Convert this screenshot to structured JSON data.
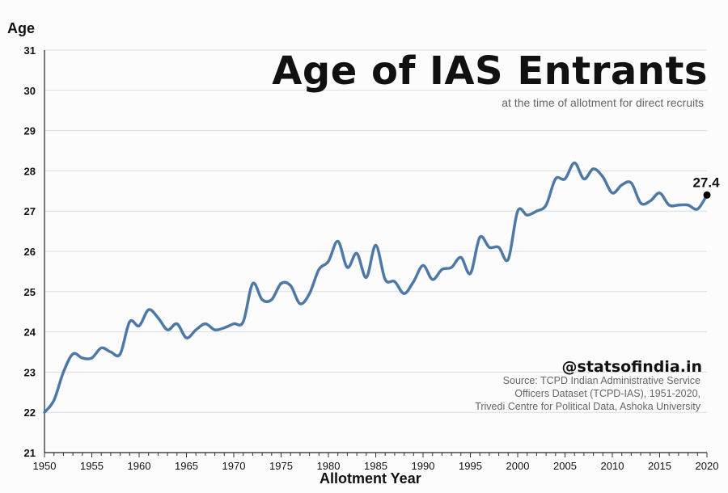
{
  "chart_data": {
    "type": "line",
    "title": "Age of IAS Entrants",
    "subtitle": "at the time of allotment for direct recruits",
    "xlabel": "Allotment Year",
    "ylabel": "Age",
    "xlim": [
      1950,
      2020
    ],
    "ylim": [
      21,
      31
    ],
    "yticks": [
      21,
      22,
      23,
      24,
      25,
      26,
      27,
      28,
      29,
      30,
      31
    ],
    "xticks": [
      1950,
      1955,
      1960,
      1965,
      1970,
      1975,
      1980,
      1985,
      1990,
      1995,
      2000,
      2005,
      2010,
      2015,
      2020
    ],
    "series": [
      {
        "name": "Average age",
        "color": "#4e79a7",
        "x": [
          1950,
          1951,
          1952,
          1953,
          1954,
          1955,
          1956,
          1957,
          1958,
          1959,
          1960,
          1961,
          1962,
          1963,
          1964,
          1965,
          1966,
          1967,
          1968,
          1969,
          1970,
          1971,
          1972,
          1973,
          1974,
          1975,
          1976,
          1977,
          1978,
          1979,
          1980,
          1981,
          1982,
          1983,
          1984,
          1985,
          1986,
          1987,
          1988,
          1989,
          1990,
          1991,
          1992,
          1993,
          1994,
          1995,
          1996,
          1997,
          1998,
          1999,
          2000,
          2001,
          2002,
          2003,
          2004,
          2005,
          2006,
          2007,
          2008,
          2009,
          2010,
          2011,
          2012,
          2013,
          2014,
          2015,
          2016,
          2017,
          2018,
          2019,
          2020
        ],
        "y": [
          22.0,
          22.3,
          23.0,
          23.45,
          23.35,
          23.35,
          23.6,
          23.5,
          23.45,
          24.25,
          24.15,
          24.55,
          24.35,
          24.05,
          24.2,
          23.85,
          24.05,
          24.2,
          24.05,
          24.1,
          24.2,
          24.25,
          25.2,
          24.8,
          24.8,
          25.2,
          25.15,
          24.7,
          24.95,
          25.55,
          25.75,
          26.25,
          25.6,
          25.95,
          25.35,
          26.15,
          25.3,
          25.25,
          24.95,
          25.25,
          25.65,
          25.3,
          25.55,
          25.6,
          25.85,
          25.45,
          26.35,
          26.1,
          26.1,
          25.8,
          27.0,
          26.9,
          27.0,
          27.15,
          27.8,
          27.8,
          28.2,
          27.8,
          28.05,
          27.85,
          27.45,
          27.65,
          27.7,
          27.2,
          27.25,
          27.45,
          27.15,
          27.15,
          27.15,
          27.05,
          27.4
        ]
      }
    ],
    "annotation": {
      "x": 2020,
      "y": 27.4,
      "label": "27.4"
    }
  },
  "branding": {
    "handle": "@statsofindia.in",
    "source_lines": [
      "Source: TCPD Indian Administrative Service",
      "Officers Dataset (TCPD-IAS), 1951-2020,",
      "Trivedi Centre for Political Data, Ashoka University"
    ]
  }
}
